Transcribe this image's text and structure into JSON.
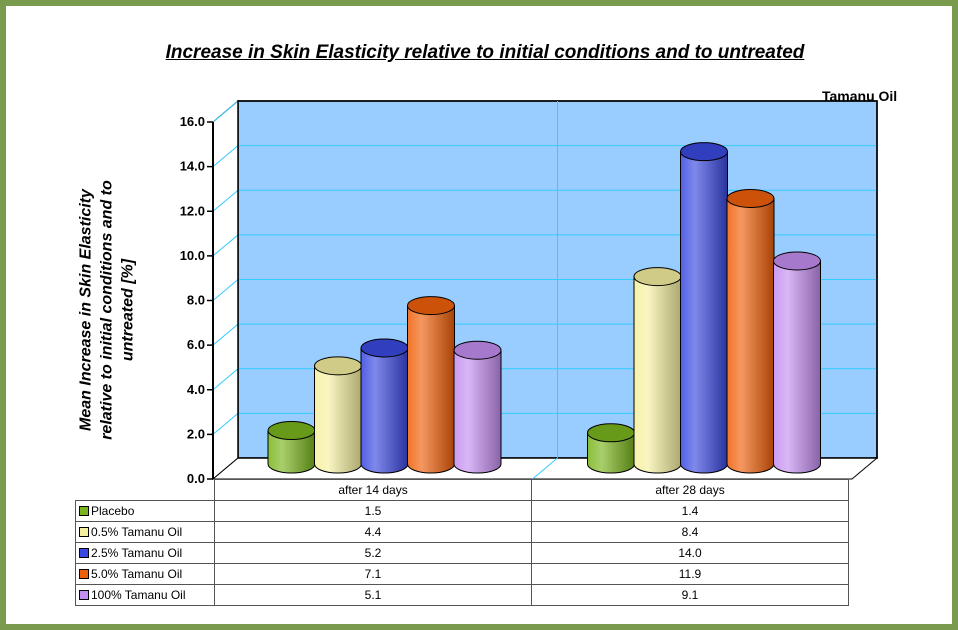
{
  "chart_data": {
    "type": "bar",
    "title": "Increase in Skin Elasticity relative to initial conditions and to untreated",
    "annotation": "Tamanu Oil",
    "ylabel": "Mean Increase in Skin Elasticity relative to initial conditions and to untreated [%]",
    "xlabel": "",
    "ylim": [
      0,
      16
    ],
    "yticks": [
      "0.0",
      "2.0",
      "4.0",
      "6.0",
      "8.0",
      "10.0",
      "12.0",
      "14.0",
      "16.0"
    ],
    "categories": [
      "after 14 days",
      "after 28 days"
    ],
    "series": [
      {
        "name": "Placebo",
        "color": "#7ab51d",
        "values": [
          1.5,
          1.4
        ],
        "labels": [
          "1.5",
          "1.4"
        ]
      },
      {
        "name": "0.5% Tamanu Oil",
        "color": "#f5f0a0",
        "values": [
          4.4,
          8.4
        ],
        "labels": [
          "4.4",
          "8.4"
        ]
      },
      {
        "name": "2.5%  Tamanu Oil",
        "color": "#3a49e0",
        "values": [
          5.2,
          14.0
        ],
        "labels": [
          "5.2",
          "14.0"
        ]
      },
      {
        "name": "5.0%  Tamanu Oil",
        "color": "#f0600a",
        "values": [
          7.1,
          11.9
        ],
        "labels": [
          "7.1",
          "11.9"
        ]
      },
      {
        "name": "100%  Tamanu Oil",
        "color": "#c48ef0",
        "values": [
          5.1,
          9.1
        ],
        "labels": [
          "5.1",
          "9.1"
        ]
      }
    ],
    "grid": true,
    "legend": "data table below chart",
    "colors": {
      "wall": "#99ccff",
      "floor": "#ffffff",
      "grid": "#33ccff",
      "frame": "#7a9a4e"
    }
  }
}
